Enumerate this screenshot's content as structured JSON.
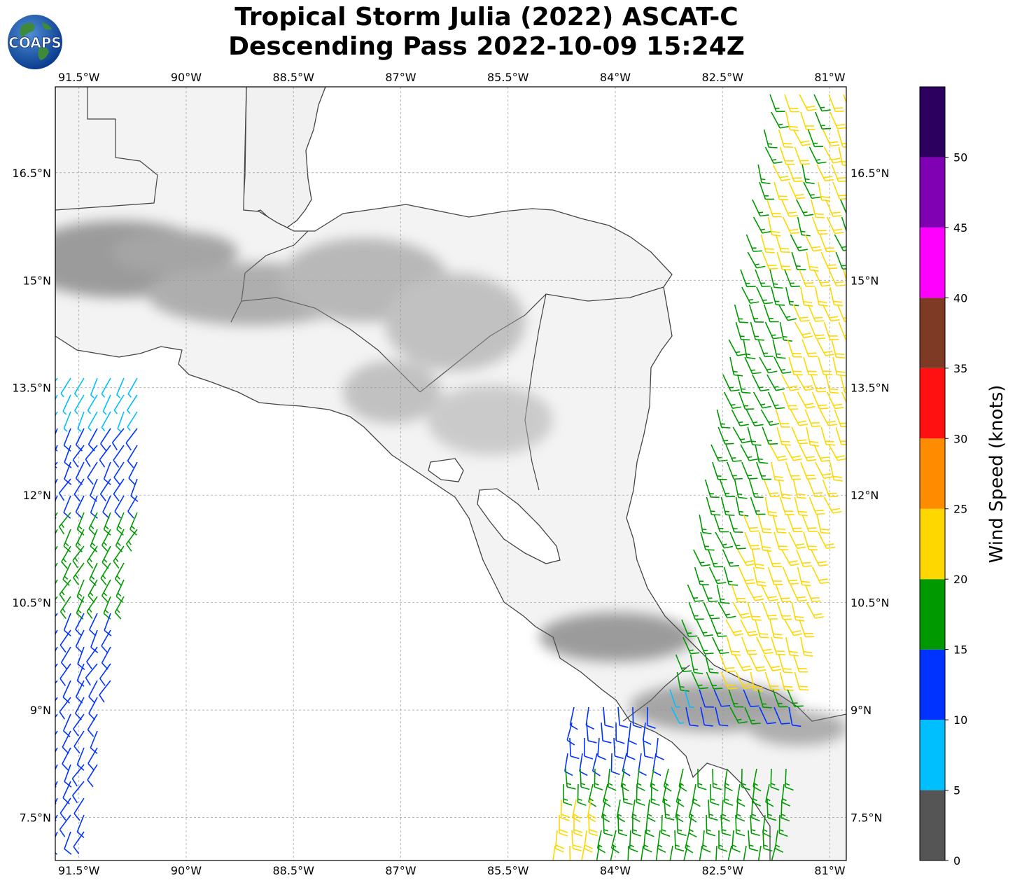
{
  "title": {
    "line1": "Tropical Storm Julia (2022) ASCAT-C",
    "line2": "Descending Pass 2022-10-09 15:24Z"
  },
  "logo": {
    "text": "COAPS",
    "icon": "globe-icon"
  },
  "map": {
    "lon_labels": [
      "91.5°W",
      "90°W",
      "88.5°W",
      "87°W",
      "85.5°W",
      "84°W",
      "82.5°W",
      "81°W"
    ],
    "lat_labels": [
      "16.5°N",
      "15°N",
      "13.5°N",
      "12°N",
      "10.5°N",
      "9°N",
      "7.5°N"
    ],
    "lon_values": [
      -91.5,
      -90,
      -88.5,
      -87,
      -85.5,
      -84,
      -82.5,
      -81
    ],
    "lat_values": [
      16.5,
      15,
      13.5,
      12,
      10.5,
      9,
      7.5
    ],
    "extent": {
      "lon_min": -91.83,
      "lon_max": -80.77,
      "lat_min": 6.9,
      "lat_max": 17.7
    },
    "gridlines": true,
    "land_shading": "grayscale terrain"
  },
  "colorbar": {
    "label": "Wind Speed (knots)",
    "ticks": [
      "0",
      "5",
      "10",
      "15",
      "20",
      "25",
      "30",
      "35",
      "40",
      "45",
      "50"
    ],
    "bins": [
      {
        "from": 0,
        "to": 5,
        "color": "#555555"
      },
      {
        "from": 5,
        "to": 10,
        "color": "#00bfff"
      },
      {
        "from": 10,
        "to": 15,
        "color": "#0033ff"
      },
      {
        "from": 15,
        "to": 20,
        "color": "#009900"
      },
      {
        "from": 20,
        "to": 25,
        "color": "#ffd700"
      },
      {
        "from": 25,
        "to": 30,
        "color": "#ff8c00"
      },
      {
        "from": 30,
        "to": 35,
        "color": "#ff1111"
      },
      {
        "from": 35,
        "to": 40,
        "color": "#7f3a26"
      },
      {
        "from": 40,
        "to": 45,
        "color": "#ff00ff"
      },
      {
        "from": 45,
        "to": 50,
        "color": "#8000b4"
      },
      {
        "from": 50,
        "to": 55,
        "color": "#2b005e"
      }
    ]
  }
}
